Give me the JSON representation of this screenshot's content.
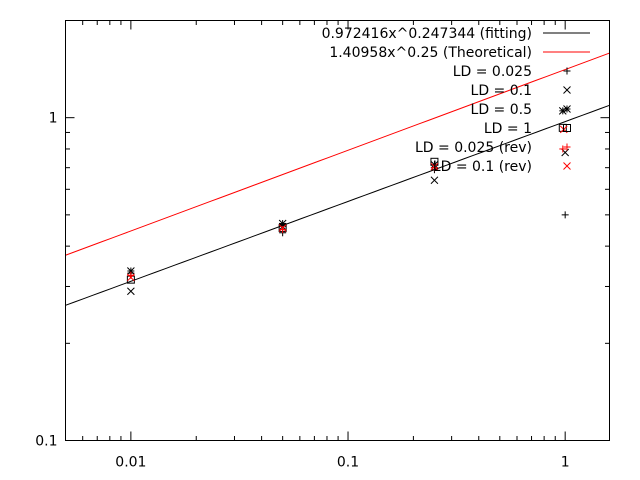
{
  "chart_data": {
    "type": "scatter",
    "xscale": "log",
    "yscale": "log",
    "xlim": [
      0.005,
      1.6
    ],
    "ylim": [
      0.1,
      2.0
    ],
    "xticks": [
      {
        "value": 0.01,
        "label": "0.01"
      },
      {
        "value": 0.1,
        "label": "0.1"
      },
      {
        "value": 1,
        "label": "1"
      }
    ],
    "yticks": [
      {
        "value": 0.1,
        "label": "0.1"
      },
      {
        "value": 1,
        "label": "1"
      }
    ],
    "legend_position": "top-right",
    "lines": [
      {
        "name": "0.972416x^0.247344 (fitting)",
        "coef": 0.972416,
        "exp": 0.247344,
        "color": "#000000"
      },
      {
        "name": "1.40958x^0.25 (Theoretical)",
        "coef": 1.40958,
        "exp": 0.25,
        "color": "#ff0000"
      }
    ],
    "series": [
      {
        "name": "LD = 0.025",
        "marker": "plus",
        "color": "#000000",
        "points": [
          [
            0.01,
            0.33
          ],
          [
            0.05,
            0.44
          ],
          [
            0.25,
            0.69
          ],
          [
            1.0,
            0.5
          ]
        ]
      },
      {
        "name": "LD = 0.1",
        "marker": "cross",
        "color": "#000000",
        "points": [
          [
            0.01,
            0.29
          ],
          [
            0.05,
            0.46
          ],
          [
            0.25,
            0.64
          ],
          [
            1.0,
            0.78
          ]
        ]
      },
      {
        "name": "LD = 0.5",
        "marker": "star",
        "color": "#000000",
        "points": [
          [
            0.01,
            0.335
          ],
          [
            0.05,
            0.47
          ],
          [
            0.25,
            0.715
          ],
          [
            0.975,
            1.05
          ]
        ]
      },
      {
        "name": "LD = 1",
        "marker": "square",
        "color": "#000000",
        "points": [
          [
            0.01,
            0.315
          ],
          [
            0.05,
            0.455
          ],
          [
            0.25,
            0.73
          ],
          [
            0.975,
            0.93
          ]
        ]
      },
      {
        "name": "LD = 0.025 (rev)",
        "marker": "plus",
        "color": "#ff0000",
        "points": [
          [
            0.01,
            0.325
          ],
          [
            0.05,
            0.45
          ],
          [
            0.25,
            0.7
          ],
          [
            0.975,
            0.8
          ]
        ]
      },
      {
        "name": "LD = 0.1 (rev)",
        "marker": "cross",
        "color": "#ff0000",
        "points": [
          [
            0.01,
            0.32
          ],
          [
            0.05,
            0.455
          ],
          [
            0.25,
            0.705
          ],
          [
            0.985,
            0.92
          ]
        ]
      }
    ]
  }
}
